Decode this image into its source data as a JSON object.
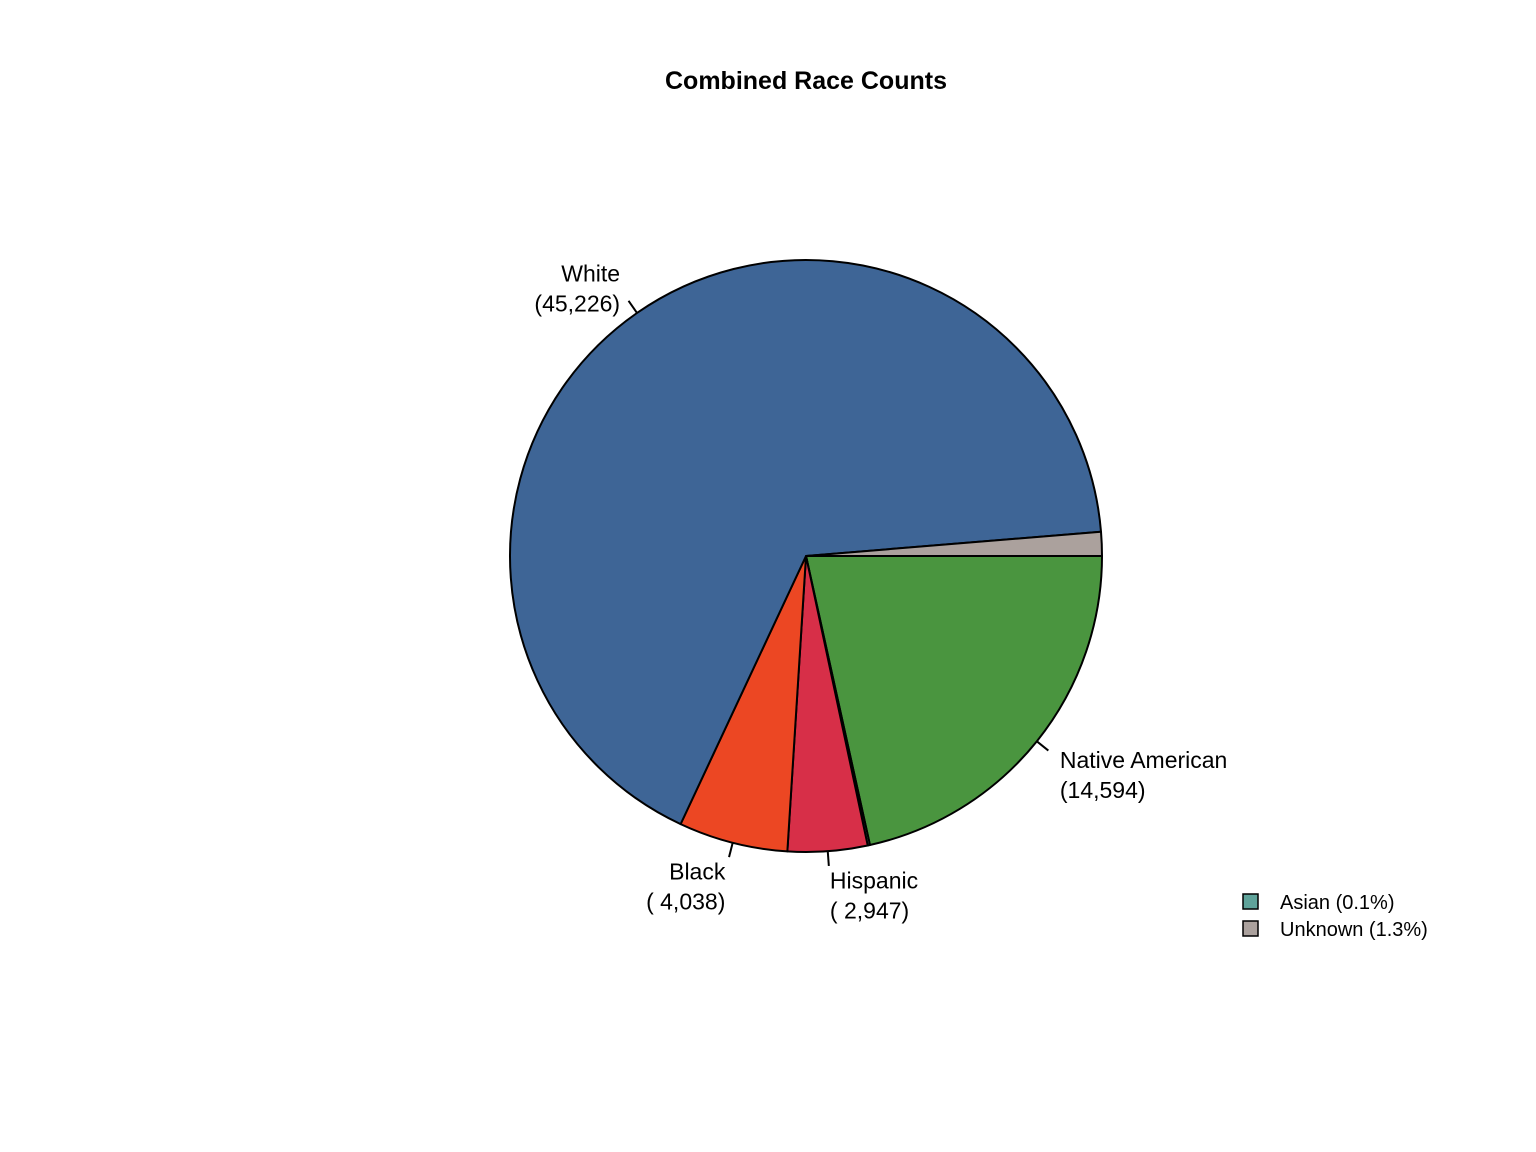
{
  "chart_data": {
    "type": "pie",
    "title": "Combined Race Counts",
    "start_angle_deg": 0,
    "direction": "clockwise",
    "slices": [
      {
        "name": "Native American",
        "value": 14594,
        "color": "#4A953F",
        "label_name": "Native American",
        "label_value": "(14,594)",
        "show_label": true
      },
      {
        "name": "Asian",
        "value": 82,
        "color": "#5FA39A",
        "label_name": "",
        "label_value": "",
        "show_label": false
      },
      {
        "name": "Hispanic",
        "value": 2947,
        "color": "#D72F48",
        "label_name": "Hispanic",
        "label_value": "( 2,947)",
        "show_label": true
      },
      {
        "name": "Black",
        "value": 4038,
        "color": "#EC4723",
        "label_name": "Black",
        "label_value": "( 4,038)",
        "show_label": true
      },
      {
        "name": "White",
        "value": 45226,
        "color": "#3E6596",
        "label_name": "White",
        "label_value": "(45,226)",
        "show_label": true
      },
      {
        "name": "Unknown",
        "value": 884,
        "color": "#ABA19D",
        "label_name": "",
        "label_value": "",
        "show_label": false
      }
    ],
    "legend": {
      "placement": "bottom-right",
      "entries": [
        {
          "label": "Asian (0.1%)",
          "color": "#5FA39A"
        },
        {
          "label": "Unknown (1.3%)",
          "color": "#ABA19D"
        }
      ]
    }
  }
}
